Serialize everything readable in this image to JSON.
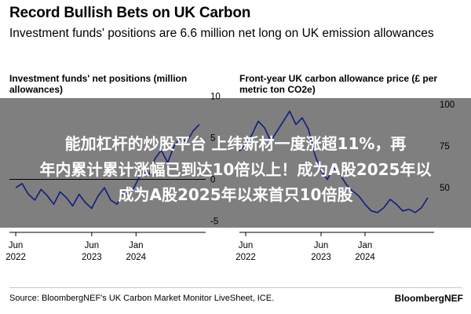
{
  "header": {
    "title": "Record Bullish Bets on UK Carbon",
    "subtitle": "Investment funds' positions are 6.6 million net long on UK emission allowances"
  },
  "overlay": {
    "line1": "能加杠杆的炒股平台 上纬新材一度涨超11%，再",
    "line2": "年内累计累计涨幅已到达10倍以上！成为A股2025年以",
    "line3": "成为A股2025年以来首只10倍股"
  },
  "footer": {
    "source": "Source: BloombergNEF's UK Carbon Market Monitor LiveSheet, ICE.",
    "brand": "BloombergNEF"
  },
  "colors": {
    "line": "#1f3bff",
    "zero_line": "#000000"
  },
  "chart_data": [
    {
      "type": "line",
      "title": "Investment funds' net positions (million allowances)",
      "ylim": [
        -6,
        11
      ],
      "yticks": [
        "10",
        "5",
        "0",
        "-5"
      ],
      "xlim": [
        "2022-05",
        "2024-12"
      ],
      "xticks": [
        {
          "month": "Jun",
          "year": "2022",
          "x": "2022-06"
        },
        {
          "month": "Jun",
          "year": "2023",
          "x": "2023-06"
        },
        {
          "month": "Jan",
          "year": "2024",
          "x": "2024-01"
        }
      ],
      "series": [
        {
          "x": [
            "2022-06",
            "2022-07",
            "2022-08",
            "2022-09",
            "2022-10",
            "2022-11",
            "2022-12",
            "2023-01",
            "2023-02",
            "2023-03",
            "2023-04",
            "2023-05",
            "2023-06",
            "2023-07",
            "2023-08",
            "2023-09",
            "2023-10",
            "2023-11",
            "2023-12",
            "2024-01",
            "2024-02",
            "2024-03",
            "2024-04",
            "2024-05",
            "2024-06",
            "2024-07",
            "2024-08",
            "2024-09",
            "2024-10",
            "2024-11"
          ],
          "y": [
            -1.0,
            -0.5,
            -1.8,
            -2.5,
            -1.2,
            -2.0,
            -3.0,
            -1.5,
            -2.2,
            -3.2,
            -1.8,
            -2.8,
            -3.5,
            -2.0,
            -1.0,
            -2.5,
            -3.0,
            -1.5,
            -2.0,
            -0.5,
            1.0,
            0.5,
            2.5,
            3.5,
            2.0,
            4.0,
            5.0,
            4.5,
            5.8,
            6.6
          ]
        }
      ]
    },
    {
      "type": "line",
      "title": "Front-year UK carbon allowance price (£ per metric ton CO2e)",
      "ylim": [
        25,
        110
      ],
      "yticks": [
        "100",
        "75",
        "50"
      ],
      "xlim": [
        "2022-05",
        "2024-12"
      ],
      "xticks": [
        {
          "month": "Jun",
          "year": "2022",
          "x": "2022-06"
        },
        {
          "month": "Jun",
          "year": "2023",
          "x": "2023-06"
        },
        {
          "month": "Jan",
          "year": "2024",
          "x": "2024-01"
        }
      ],
      "series": [
        {
          "x": [
            "2022-05",
            "2022-06",
            "2022-07",
            "2022-08",
            "2022-09",
            "2022-10",
            "2022-11",
            "2022-12",
            "2023-01",
            "2023-02",
            "2023-03",
            "2023-04",
            "2023-05",
            "2023-06",
            "2023-07",
            "2023-08",
            "2023-09",
            "2023-10",
            "2023-11",
            "2023-12",
            "2024-01",
            "2024-02",
            "2024-03",
            "2024-04",
            "2024-05",
            "2024-06",
            "2024-07",
            "2024-08",
            "2024-09",
            "2024-10",
            "2024-11"
          ],
          "y": [
            72,
            76,
            82,
            90,
            86,
            78,
            84,
            90,
            96,
            88,
            92,
            85,
            70,
            60,
            55,
            62,
            58,
            52,
            48,
            45,
            40,
            36,
            35,
            38,
            43,
            40,
            36,
            37,
            35,
            38,
            44
          ]
        }
      ]
    }
  ]
}
